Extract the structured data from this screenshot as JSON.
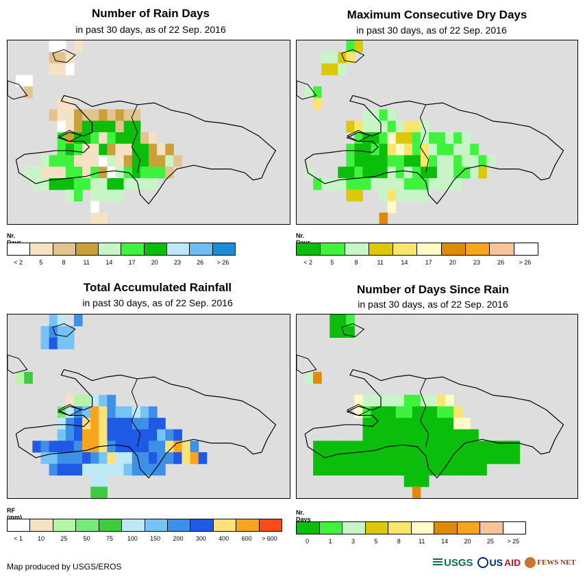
{
  "panels": [
    {
      "id": "rain-days",
      "title": "Number of Rain Days",
      "subtitle": "in past 30 days, as of 22 Sep. 2016",
      "unit": "Nr. Days",
      "legend": {
        "colors": [
          "#ffffff",
          "#f5e1c4",
          "#e3c48f",
          "#c9a03a",
          "#c8f5c8",
          "#3ef23e",
          "#0bbe0b",
          "#bfe8f7",
          "#6ebcf5",
          "#1a8fd8"
        ],
        "labels": [
          "< 2",
          "5",
          "8",
          "11",
          "14",
          "17",
          "20",
          "23",
          "26",
          "> 26"
        ]
      },
      "grid": [
        ".....AA.p.........................",
        ".....CCB..........................",
        ".....BBA..........................",
        ".AA...............................",
        "..C...............................",
        "......BB..........................",
        ".....CBBDCCDCDCC.......",
        "......ABDGGGGCGG.......",
        "......FDGGFBFGGGCB.....",
        "......FGFBBGDBBGGDBD..",
        "....EFFFBBBAEBDGGDDEC",
        "..EEBBBFFBFDAEFGFFFC..",
        "...EEGGGFFEEGGEEEE.....",
        ".......EF.EEEE.........",
        "..........A............",
        "..........BB..........."
      ]
    },
    {
      "id": "max-dry-days",
      "title": "Maximum Consecutive Dry Days",
      "subtitle": "in past 30 days, as of 22 Sep. 2016",
      "unit": "Nr. Days",
      "legend": {
        "colors": [
          "#0bbe0b",
          "#3ef23e",
          "#c8f5c8",
          "#dcc80a",
          "#f7e66a",
          "#fffcc8",
          "#de8a0a",
          "#f7a51c",
          "#f7c39b",
          "#ffffff"
        ],
        "labels": [
          "< 2",
          "5",
          "8",
          "11",
          "14",
          "17",
          "20",
          "23",
          "26",
          "> 26"
        ]
      },
      "grid": [
        "......pD..........................",
        "...CCDE.........................",
        "...DDC..........................",
        "................................",
        ".CB.............................",
        "..E.............................",
        "........CCBC.....................",
        "......DECCCBCEEC.................",
        ".......BAABFDDBCBBCBC...........",
        "......BAABAEFEBECBBCCB..........",
        "......BAAAABBAAEBCCBCCBC..........",
        ".C...AABAAACBCBAACCBBCD...........",
        "..BCCCBBBCCCCBBBCCCC.............",
        "......DD..CECCCC.................",
        "...........F.....................",
        "..........G......................"
      ]
    },
    {
      "id": "total-rainfall",
      "title": "Total Accumulated Rainfall",
      "subtitle": "in past 30 days, as of 22 Sep. 2016",
      "unit": "RF (mm)",
      "legend": {
        "colors": [
          "#ffffff",
          "#f5e1c4",
          "#b6f5a5",
          "#78e878",
          "#3ecc3e",
          "#bfe8f7",
          "#78c3f5",
          "#3c91e6",
          "#1e5ae6",
          "#fde27a",
          "#f7a51c",
          "#f74b1a"
        ],
        "labels": [
          "< 1",
          "10",
          "25",
          "50",
          "75",
          "100",
          "150",
          "200",
          "300",
          "400",
          "600",
          "> 600"
        ]
      },
      "grid": [
        ".....GF.H.........................",
        "....GHGG..........................",
        "....GIGG..........................",
        "..................................",
        "..................................",
        ".CE...............................",
        "...............................",
        ".......BCCFGH.....................",
        "......DFHGKJHGGFGH................",
        "......FHIJKJIIIHHII...............",
        "......GHIKKJIIIIIIGHI.............",
        "...IHIIIHKKJHIIIIHHJKJH..........",
        "....GGHHHIHGJFFHHIHHIJKI.........",
        ".....HIIIFFFFFGHHHH..............",
        "..........FF.....................",
        "..........EE....................."
      ]
    },
    {
      "id": "days-since-rain",
      "title": "Number of Days Since Rain",
      "subtitle": "in past 30 days, as of 22 Sep. 2016",
      "unit": "Nr. Days",
      "legend": {
        "colors": [
          "#0bbe0b",
          "#3ef23e",
          "#c8f5c8",
          "#dcc80a",
          "#f7e66a",
          "#fffcc8",
          "#de8a0a",
          "#f7a51c",
          "#f7c39b",
          "#ffffff"
        ],
        "labels": [
          "0",
          "1",
          "3",
          "5",
          "8",
          "11",
          "14",
          "20",
          "25",
          "> 25"
        ]
      },
      "grid": [
        "....AAB.........................",
        "....AAA.........................",
        "..................................",
        "..................................",
        "..................................",
        ".CG...............................",
        "...............................",
        ".......FCCCCCBBCCEF..............",
        ".......FBAAABBAAABBE..............",
        "........AAAAAAAAAAAFF.............",
        "........AAAAAAAAAAAAAA............",
        "..AAAAAAAAAAAAAAAAAAAAAAAAA.........",
        "..AAAAAAAAAAAAAAAAAAAAAAAAA.........",
        "..AAAAAAAAAAAAAAAAAAAAA...........",
        ".............AAA.................",
        "..............G..................."
      ]
    }
  ],
  "credit": "Map produced by USGS/EROS",
  "logos": {
    "usgs": "USGS",
    "usaid_a": "US",
    "usaid_b": "AID",
    "fews": "FEWS NET"
  }
}
